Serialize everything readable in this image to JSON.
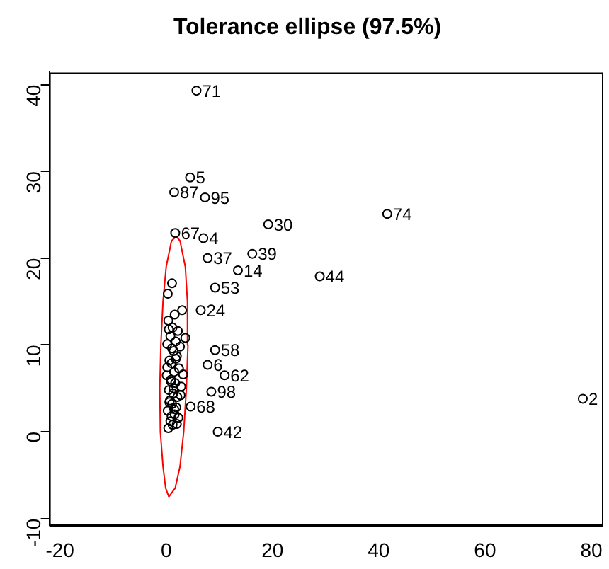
{
  "chart_data": {
    "type": "scatter",
    "title": "Tolerance ellipse (97.5%)",
    "xlim": [
      -22,
      82
    ],
    "ylim": [
      -10.8,
      41.4
    ],
    "xticks": [
      -20,
      0,
      20,
      40,
      60,
      80
    ],
    "yticks": [
      -10,
      0,
      10,
      20,
      30,
      40
    ],
    "grid": false,
    "legend": false,
    "marker": "circle",
    "series": [
      {
        "color": "#000000",
        "x": [
          5.7,
          1.5,
          4.5,
          7.3,
          19.2,
          41.6,
          16.2,
          28.9,
          78.4,
          9.7,
          11.0,
          8.5,
          4.6,
          1.7,
          7.0,
          13.5,
          7.8,
          6.5,
          9.2,
          7.8,
          9.2,
          1.1,
          0.3,
          3.0,
          1.6,
          0.4,
          1.2,
          2.2,
          0.8,
          1.8,
          2.6,
          0.2,
          1.4,
          2.0,
          0.6,
          1.0,
          2.4,
          1.5,
          0.1,
          0.9,
          1.7,
          2.8,
          0.5,
          1.3,
          2.1,
          0.7,
          1.1,
          1.9,
          0.3,
          1.6,
          2.3,
          0.8,
          1.2,
          0.4,
          2.0,
          1.0,
          1.5,
          0.6,
          2.7,
          1.4,
          0.9,
          3.2,
          0.2,
          1.8,
          1.1,
          3.6,
          0.5
        ],
        "values": [
          39.3,
          27.6,
          29.3,
          27.0,
          23.9,
          25.1,
          20.5,
          17.9,
          3.8,
          0.0,
          6.5,
          4.6,
          2.9,
          22.9,
          22.3,
          18.6,
          20.0,
          14.0,
          9.4,
          7.7,
          16.6,
          17.1,
          15.9,
          14.0,
          13.5,
          12.8,
          12.0,
          11.6,
          11.0,
          10.4,
          9.8,
          10.1,
          9.3,
          8.7,
          8.2,
          7.9,
          7.3,
          6.9,
          6.5,
          6.0,
          5.6,
          5.2,
          4.8,
          4.4,
          4.0,
          3.6,
          3.2,
          2.8,
          2.4,
          2.0,
          1.6,
          1.2,
          0.8,
          0.4,
          0.9,
          1.8,
          2.6,
          3.4,
          4.2,
          5.0,
          5.8,
          6.6,
          7.4,
          8.4,
          9.6,
          10.8,
          11.8
        ]
      },
      {
        "type": "line",
        "color": "#ff0000",
        "marker": "none",
        "x": [
          0.5,
          1.7,
          2.6,
          3.3,
          3.8,
          4.1,
          4.0,
          3.6,
          2.6,
          1.9
        ],
        "values": [
          -7.5,
          -6.5,
          -4,
          0,
          5,
          10,
          15,
          19,
          22,
          22.5
        ]
      },
      {
        "type": "line",
        "color": "#ff0000",
        "marker": "none",
        "x": [
          1.9,
          1.0,
          0,
          -0.6,
          -1.0,
          -1.2,
          -1.1,
          -0.6,
          -0.1,
          0.5
        ],
        "values": [
          22.5,
          22,
          19,
          15,
          10,
          5,
          0,
          -4,
          -6.5,
          -7.5
        ]
      }
    ],
    "annotations": [
      {
        "text": "71",
        "x": 5.7,
        "y": 39.3
      },
      {
        "text": "87",
        "x": 1.5,
        "y": 27.6
      },
      {
        "text": "5",
        "x": 4.5,
        "y": 29.3
      },
      {
        "text": "95",
        "x": 7.3,
        "y": 27.0
      },
      {
        "text": "30",
        "x": 19.2,
        "y": 23.9
      },
      {
        "text": "74",
        "x": 41.6,
        "y": 25.1
      },
      {
        "text": "39",
        "x": 16.2,
        "y": 20.5
      },
      {
        "text": "44",
        "x": 28.9,
        "y": 17.9
      },
      {
        "text": "2",
        "x": 78.4,
        "y": 3.8
      },
      {
        "text": "42",
        "x": 9.7,
        "y": 0.0
      },
      {
        "text": "62",
        "x": 11.0,
        "y": 6.5
      },
      {
        "text": "98",
        "x": 8.5,
        "y": 4.6
      },
      {
        "text": "68",
        "x": 4.6,
        "y": 2.9
      },
      {
        "text": "67",
        "x": 1.7,
        "y": 22.9
      },
      {
        "text": "4",
        "x": 7.0,
        "y": 22.3
      },
      {
        "text": "14",
        "x": 13.5,
        "y": 18.6
      },
      {
        "text": "37",
        "x": 7.8,
        "y": 20.0
      },
      {
        "text": "24",
        "x": 6.5,
        "y": 14.0
      },
      {
        "text": "58",
        "x": 9.2,
        "y": 9.4
      },
      {
        "text": "6",
        "x": 7.8,
        "y": 7.7
      },
      {
        "text": "53",
        "x": 9.2,
        "y": 16.6
      }
    ]
  }
}
